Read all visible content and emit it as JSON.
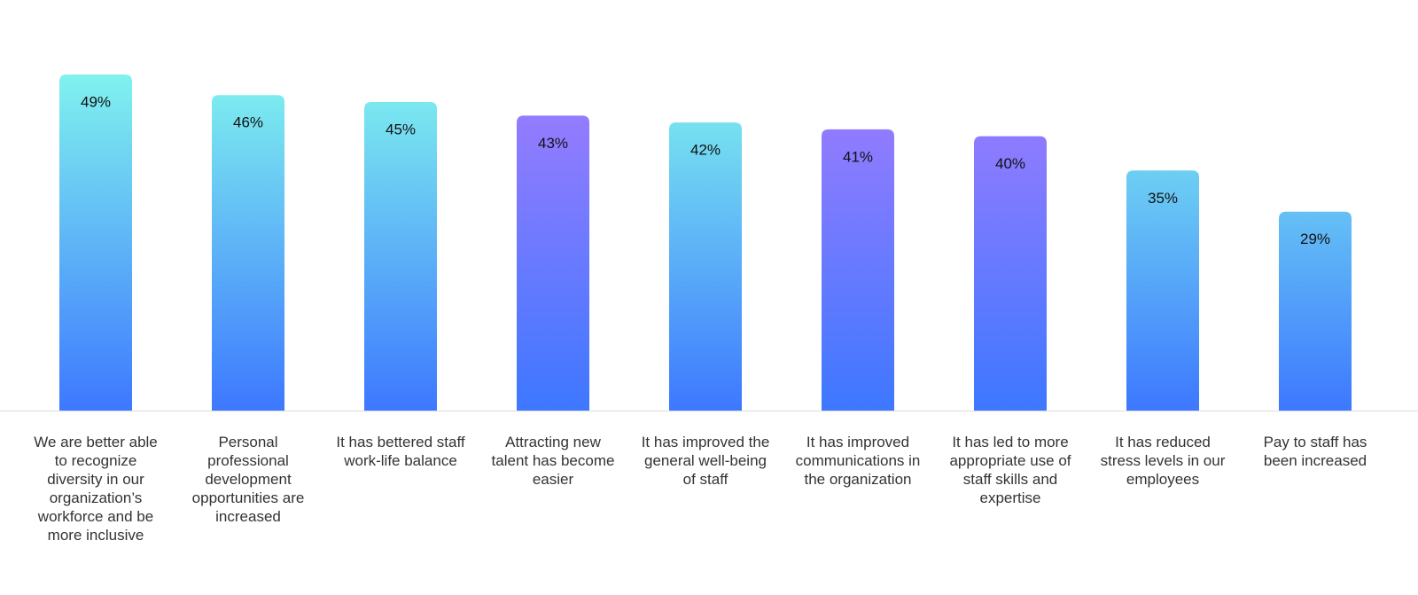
{
  "chart_data": {
    "type": "bar",
    "categories": [
      "We are better able to recognize diversity in our organization’s workforce and be more inclusive",
      "Personal professional development opportunities are increased",
      "It has bettered staff work-life balance",
      "Attracting new talent has become easier",
      "It has improved the general well-being of staff",
      "It has improved communications in the organization",
      "It has led to more appropriate use of staff skills and expertise",
      "It has reduced stress levels in our employees",
      "Pay to staff has been increased"
    ],
    "values": [
      49,
      46,
      45,
      43,
      42,
      41,
      40,
      35,
      29
    ],
    "value_labels": [
      "49%",
      "46%",
      "45%",
      "43%",
      "42%",
      "41%",
      "40%",
      "35%",
      "29%"
    ],
    "colors": [
      "#80f2ee",
      "#80f2ee",
      "#80f2ee",
      "#a07cff",
      "#80f2ee",
      "#a07cff",
      "#a07cff",
      "#80f2ee",
      "#80f2ee"
    ],
    "gradient_end": "#3d78ff"
  }
}
